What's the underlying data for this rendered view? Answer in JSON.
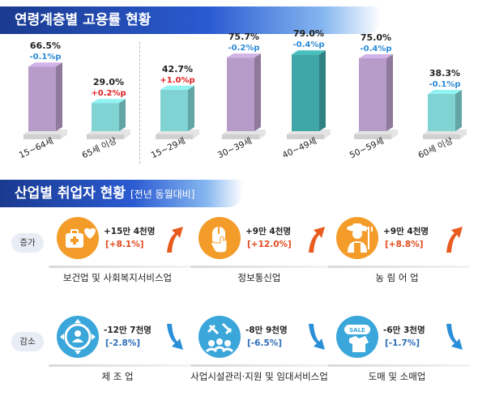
{
  "section1_title": "연령계층별 고용률 현황",
  "section2_title": "산업별 취업자 현황",
  "section2_subtitle": "[전년 동월대비]",
  "chart_data": {
    "type": "bar",
    "categories": [
      "15~64세",
      "65세 이상",
      "15~29세",
      "30~39세",
      "40~49세",
      "50~59세",
      "60세 이상"
    ],
    "values": [
      66.5,
      29.0,
      42.7,
      75.7,
      79.0,
      75.0,
      38.3
    ],
    "value_labels": [
      "66.5%",
      "29.0%",
      "42.7%",
      "75.7%",
      "79.0%",
      "75.0%",
      "38.3%"
    ],
    "changes": [
      "-0.1%p",
      "+0.2%p",
      "+1.0%p",
      "-0.2%p",
      "-0.4%p",
      "-0.4%p",
      "-0.1%p"
    ],
    "colors": [
      "#b79bc9",
      "#7fd3d3",
      "#7fd3d3",
      "#b79bc9",
      "#3fa7a7",
      "#b79bc9",
      "#7fd3d3"
    ],
    "change_colors": [
      "#2b8ad6",
      "#e02020",
      "#e02020",
      "#2b8ad6",
      "#2b8ad6",
      "#2b8ad6",
      "#2b8ad6"
    ],
    "ylim": [
      0,
      85
    ],
    "title": "연령계층별 고용률 현황"
  },
  "industries": {
    "increase_label": "증가",
    "decrease_label": "감소",
    "increase": [
      {
        "name": "보건업 및 사회복지서비스업",
        "amount": "+15만 4천명",
        "pct": "[+8.1%]",
        "icon": "medical-kit-icon"
      },
      {
        "name": "정보통신업",
        "amount": "+9만 4천명",
        "pct": "[+12.0%]",
        "icon": "mouse-click-icon"
      },
      {
        "name": "농 림 어 업",
        "amount": "+9만 4천명",
        "pct": "[+8.8%]",
        "icon": "farmer-icon"
      }
    ],
    "decrease": [
      {
        "name": "제 조 업",
        "amount": "-12만 7천명",
        "pct": "[-2.8%]",
        "icon": "manufacturing-icon"
      },
      {
        "name": "사업시설관리·지원 및 임대서비스업",
        "amount": "-8만 9천명",
        "pct": "[-6.5%]",
        "icon": "facility-support-icon"
      },
      {
        "name": "도매 및 소매업",
        "amount": "-6만 3천명",
        "pct": "[-1.7%]",
        "icon": "sale-tag-icon"
      }
    ],
    "increase_color": "#f39c2a",
    "decrease_color": "#3aa6da",
    "up_arrow_color": "#e85b1e",
    "down_arrow_color": "#2b8fd8"
  }
}
